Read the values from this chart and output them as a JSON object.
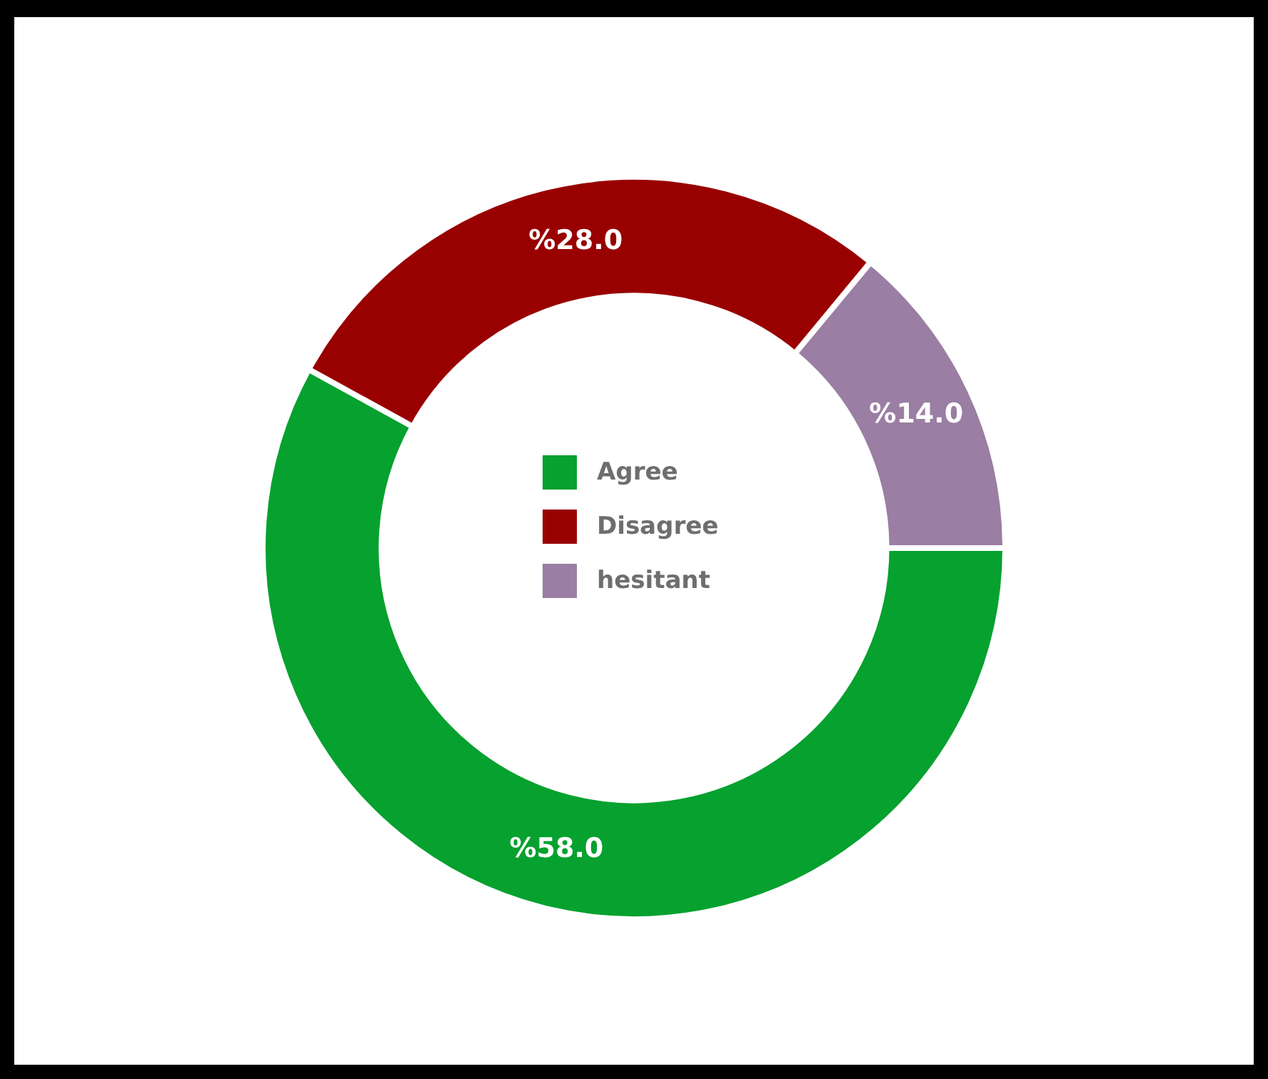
{
  "chart_data": {
    "type": "donut",
    "categories": [
      "Agree",
      "Disagree",
      "hesitant"
    ],
    "values": [
      58,
      28,
      14
    ],
    "colors": [
      "#06a12f",
      "#990000",
      "#9a7ea3"
    ],
    "value_labels": [
      "%58.0",
      "%28.0",
      "%14.0"
    ],
    "legend": "center"
  }
}
